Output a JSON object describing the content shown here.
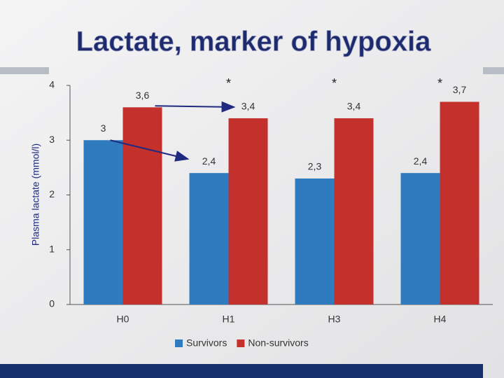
{
  "chart_data": {
    "type": "bar",
    "title": "Lactate, marker of hypoxia",
    "y_label": "Plasma lactate (mmol/l)",
    "categories": [
      "H0",
      "H1",
      "H3",
      "H4"
    ],
    "series": [
      {
        "name": "Survivors",
        "color": "#2f7bbf",
        "values": [
          3,
          2.4,
          2.3,
          2.4
        ],
        "value_labels": [
          "3",
          "2,4",
          "2,3",
          "2,4"
        ]
      },
      {
        "name": "Non-survivors",
        "color": "#c4302b",
        "values": [
          3.6,
          3.4,
          3.4,
          3.7
        ],
        "value_labels": [
          "3,6",
          "3,4",
          "3,4",
          "3,7"
        ]
      }
    ],
    "markers": [
      null,
      "*",
      "*",
      "*"
    ],
    "ylim": [
      0,
      4
    ],
    "yticks": [
      0,
      1,
      2,
      3,
      4
    ],
    "grid": false
  }
}
